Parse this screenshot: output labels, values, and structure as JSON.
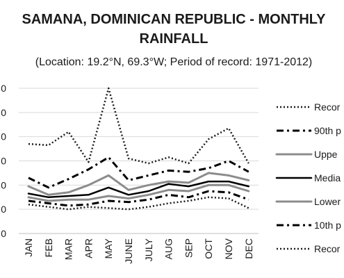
{
  "chart_data": {
    "type": "line",
    "title_line1": "SAMANA, DOMINICAN REPUBLIC - MONTHLY",
    "title_line2": "RAINFALL",
    "subtitle": "(Location: 19.2°N, 69.3°W; Period of record: 1971-2012)",
    "categories": [
      "JAN",
      "FEB",
      "MAR",
      "APR",
      "MAY",
      "JUNE",
      "JULY",
      "AUG",
      "SEP",
      "OCT",
      "NOV",
      "DEC"
    ],
    "y_tick_labels": [
      "0",
      "0",
      "0",
      "0",
      "0",
      "0",
      "0"
    ],
    "ylim": [
      0,
      600
    ],
    "grid": true,
    "legend_position": "right",
    "series": [
      {
        "name": "Recor",
        "style": "dotted",
        "color": "#1a1a1a",
        "values": [
          370,
          365,
          420,
          295,
          600,
          310,
          290,
          315,
          290,
          390,
          435,
          290
        ]
      },
      {
        "name": "90th p",
        "style": "dashdot",
        "color": "#000000",
        "values": [
          230,
          190,
          225,
          265,
          315,
          220,
          240,
          260,
          255,
          270,
          300,
          255
        ]
      },
      {
        "name": "Uppe",
        "style": "solid",
        "color": "#8c8c8c",
        "values": [
          195,
          160,
          170,
          200,
          240,
          180,
          200,
          215,
          210,
          250,
          240,
          220
        ]
      },
      {
        "name": "Media",
        "style": "solid",
        "color": "#000000",
        "values": [
          165,
          150,
          155,
          160,
          190,
          160,
          175,
          205,
          195,
          215,
          215,
          195
        ]
      },
      {
        "name": "Lower",
        "style": "solid",
        "color": "#8c8c8c",
        "values": [
          150,
          135,
          140,
          140,
          155,
          145,
          160,
          180,
          175,
          200,
          200,
          175
        ]
      },
      {
        "name": "10th p",
        "style": "dashdot",
        "color": "#000000",
        "values": [
          135,
          125,
          115,
          120,
          135,
          130,
          140,
          160,
          150,
          175,
          170,
          140
        ]
      },
      {
        "name": "Recor",
        "style": "dotted",
        "color": "#1a1a1a",
        "values": [
          120,
          110,
          100,
          110,
          105,
          100,
          110,
          125,
          135,
          150,
          145,
          105
        ]
      }
    ]
  }
}
